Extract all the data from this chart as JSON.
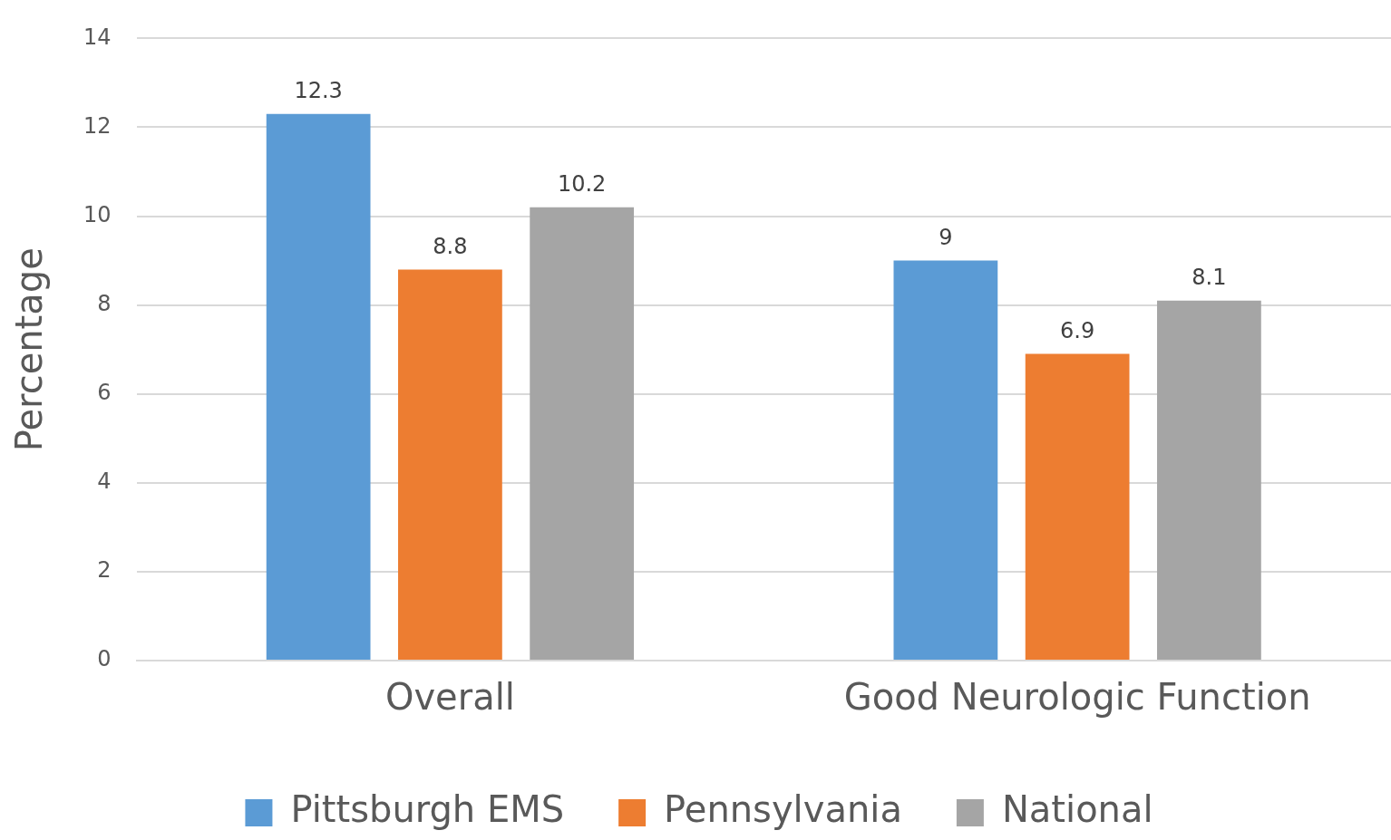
{
  "chart_data": {
    "type": "bar",
    "ylabel": "Percentage",
    "categories": [
      "Overall",
      "Good Neurologic Function"
    ],
    "series": [
      {
        "name": "Pittsburgh EMS",
        "color": "#5b9bd5",
        "values": [
          12.3,
          9
        ]
      },
      {
        "name": "Pennsylvania",
        "color": "#ed7d31",
        "values": [
          8.8,
          6.9
        ]
      },
      {
        "name": "National",
        "color": "#a5a5a5",
        "values": [
          10.2,
          8.1
        ]
      }
    ],
    "ylim": [
      0,
      14
    ],
    "yticks": [
      0,
      2,
      4,
      6,
      8,
      10,
      12,
      14
    ],
    "grid": "y",
    "legend": "bottom",
    "data_labels": true
  }
}
